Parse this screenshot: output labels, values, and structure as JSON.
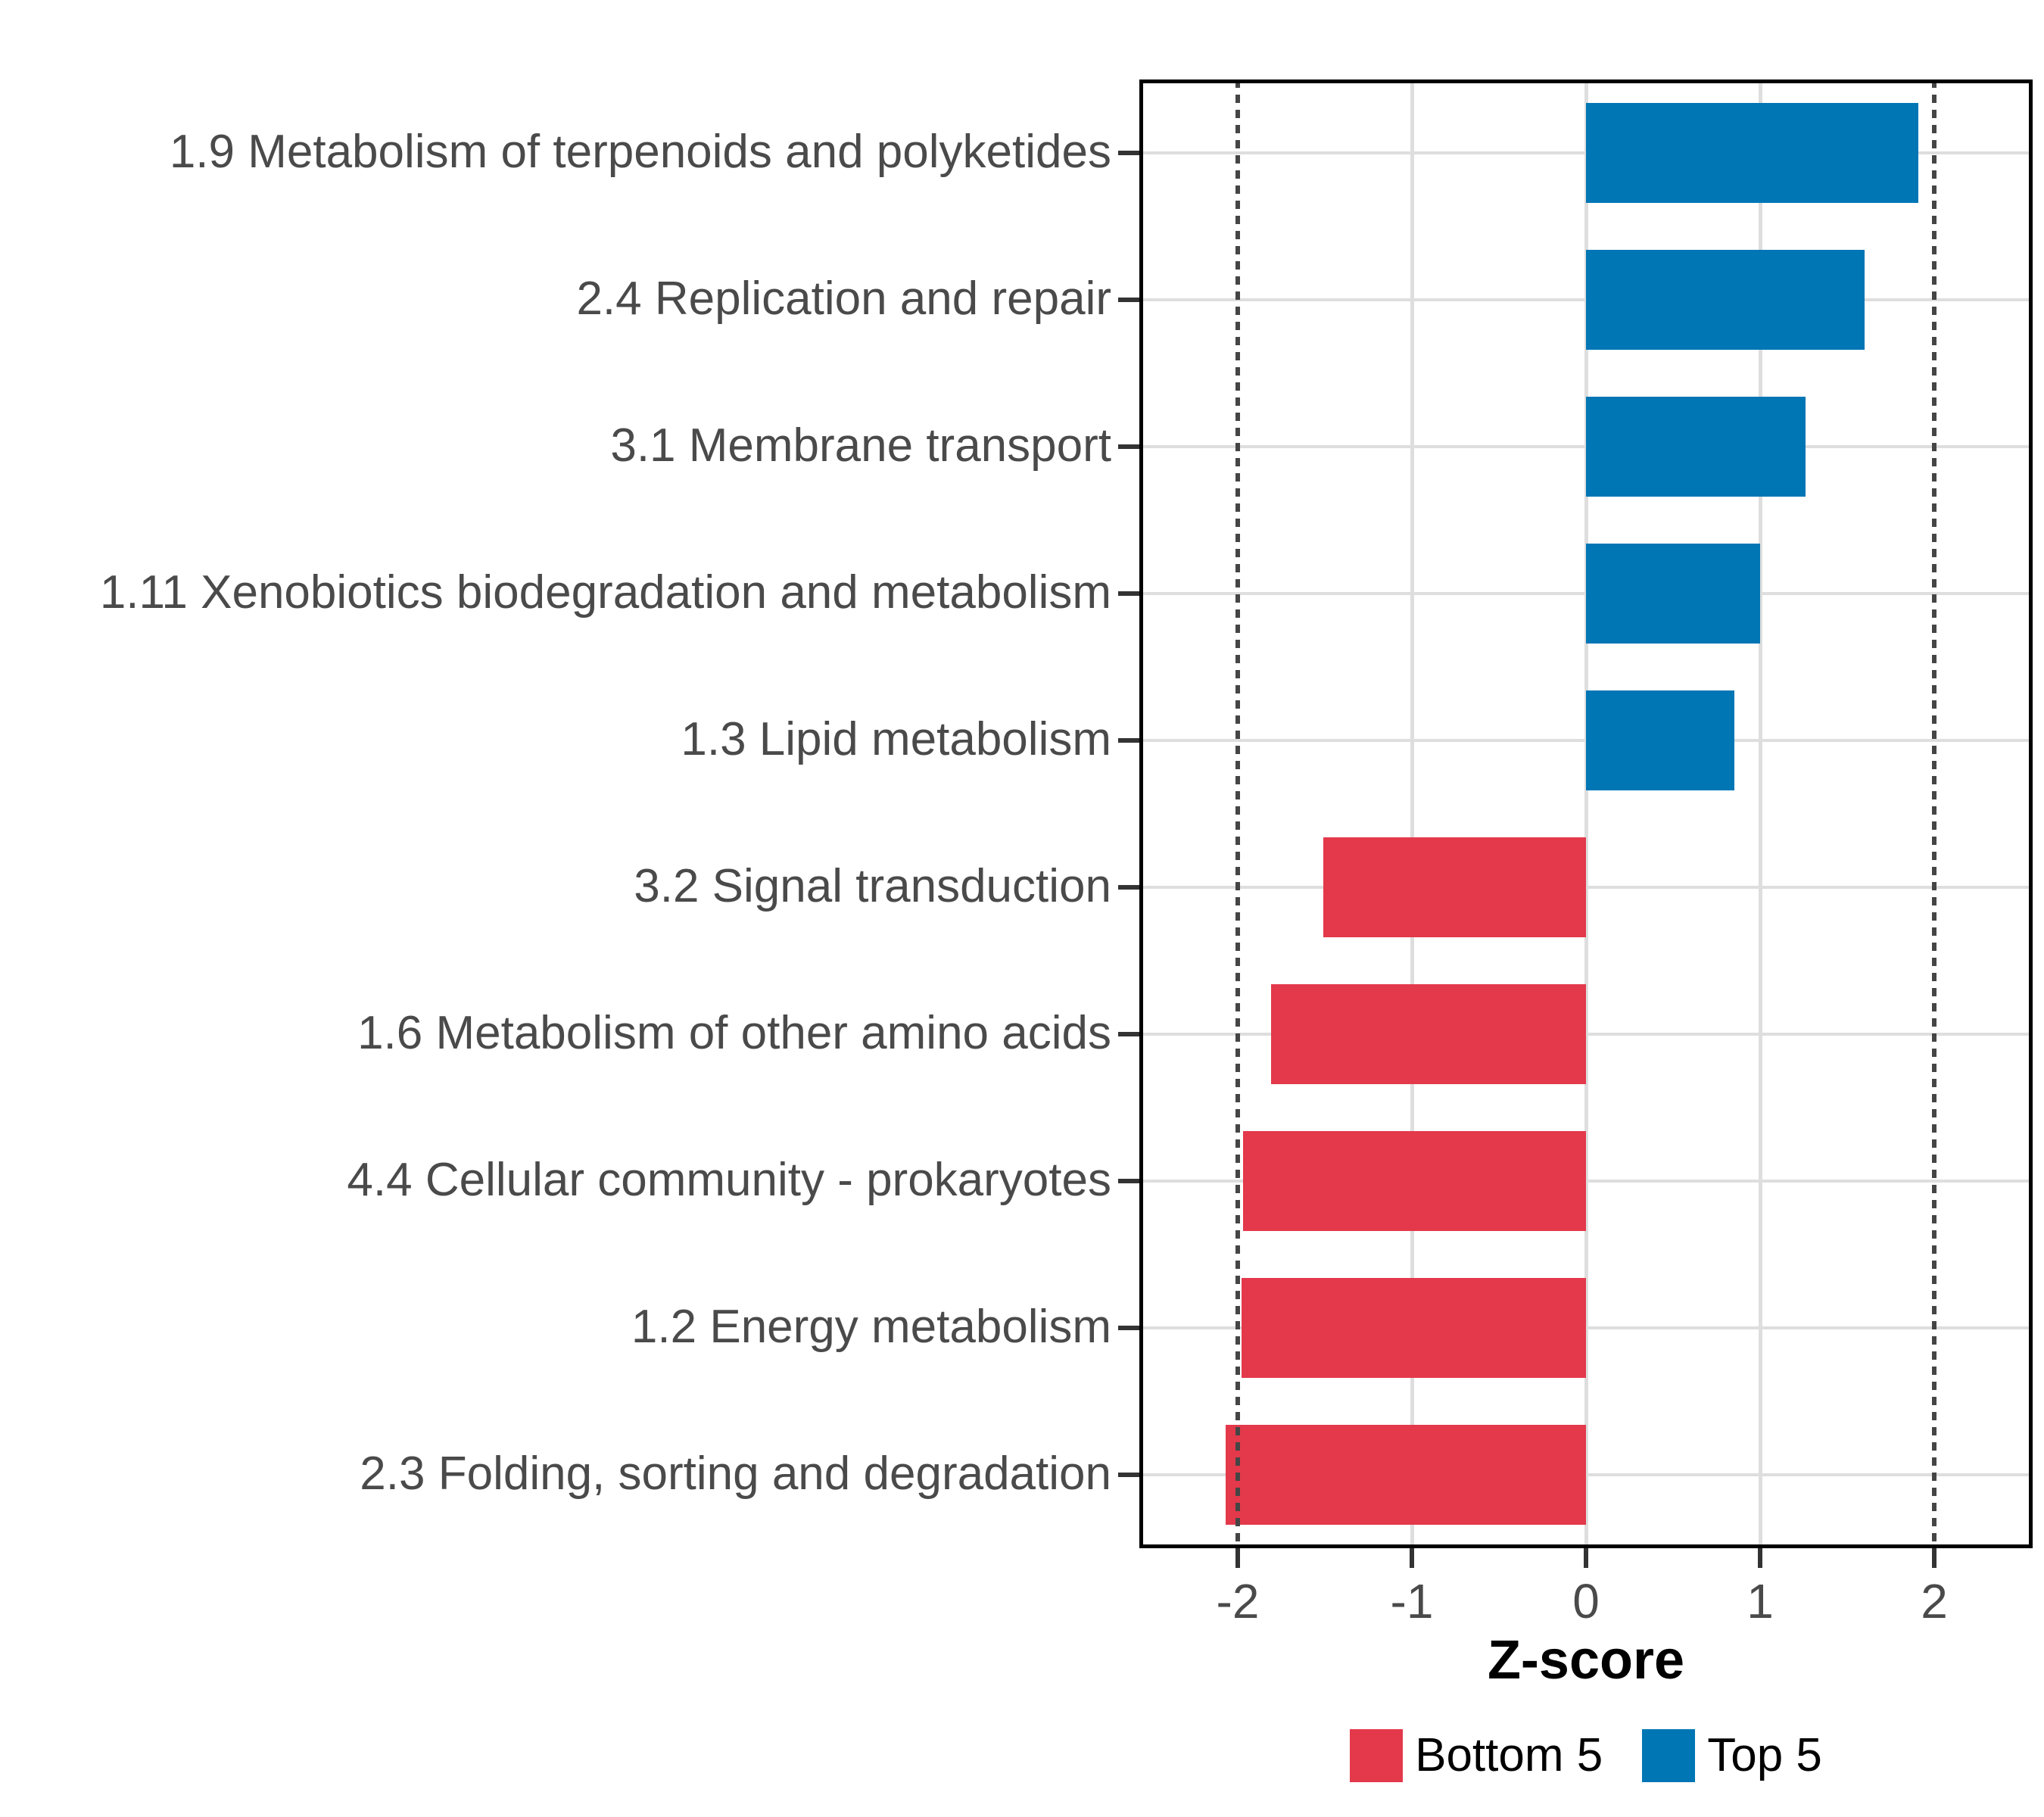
{
  "chart_data": {
    "type": "bar",
    "orientation": "horizontal",
    "title": "",
    "xlabel": "Z-score",
    "ylabel": "",
    "xlim": [
      -2.56,
      2.56
    ],
    "x_ticks": [
      -2,
      -1,
      0,
      1,
      2
    ],
    "x_tick_labels": [
      "-2",
      "-1",
      "0",
      "1",
      "2"
    ],
    "reference_lines": [
      -2,
      2
    ],
    "grid": "major vertical gridlines at integers, light horizontal gridline per category, white panel, black border",
    "legend_position": "bottom",
    "categories": [
      "1.9 Metabolism of terpenoids and polyketides",
      "2.4 Replication and repair",
      "3.1 Membrane transport",
      "1.11 Xenobiotics biodegradation and metabolism",
      "1.3 Lipid metabolism",
      "3.2 Signal transduction",
      "1.6 Metabolism of other amino acids",
      "4.4 Cellular community - prokaryotes",
      "1.2 Energy metabolism",
      "2.3 Folding, sorting and degradation"
    ],
    "values": [
      1.91,
      1.6,
      1.26,
      1.0,
      0.85,
      -1.51,
      -1.81,
      -1.97,
      -1.98,
      -2.07
    ],
    "groups": [
      "Top 5",
      "Top 5",
      "Top 5",
      "Top 5",
      "Top 5",
      "Bottom 5",
      "Bottom 5",
      "Bottom 5",
      "Bottom 5",
      "Bottom 5"
    ],
    "series": [
      {
        "name": "Z-score",
        "values": [
          1.91,
          1.6,
          1.26,
          1.0,
          0.85,
          -1.51,
          -1.81,
          -1.97,
          -1.98,
          -2.07
        ]
      }
    ],
    "legend": [
      {
        "label": "Bottom 5",
        "color": "#E3394B"
      },
      {
        "label": "Top 5",
        "color": "#0076B5"
      }
    ],
    "colors": {
      "Bottom 5": "#E3394B",
      "Top 5": "#0076B5",
      "gridline": "#DEDEDE",
      "reference_line": "#454545",
      "panel_border": "#000000",
      "tick_mark": "#333333",
      "axis_text": "#4A4A4A",
      "axis_title": "#000000"
    }
  }
}
